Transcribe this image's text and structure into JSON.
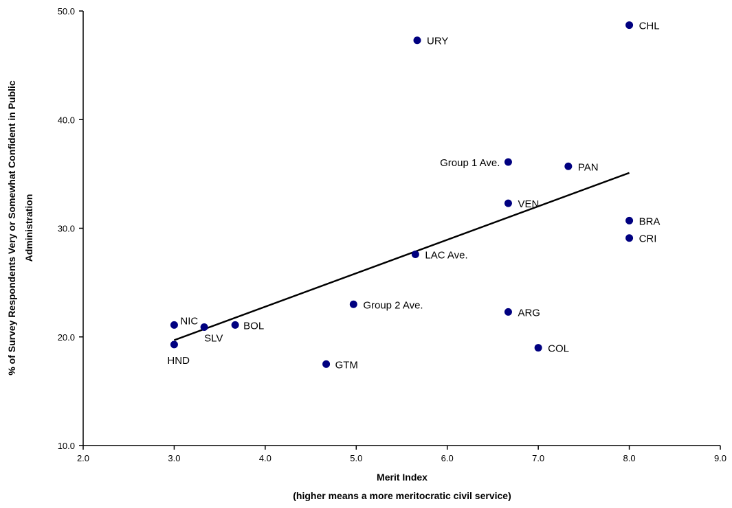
{
  "chart_data": {
    "type": "scatter",
    "title": "",
    "xlabel": "Merit Index",
    "xlabel_line2": "(higher means a more meritocratic civil service)",
    "ylabel": "% of Survey Respondents Very or Somewhat Confident in Public",
    "ylabel_line2": "Administration",
    "xlim": [
      2.0,
      9.0
    ],
    "ylim": [
      10.0,
      50.0
    ],
    "x_ticks": [
      2.0,
      3.0,
      4.0,
      5.0,
      6.0,
      7.0,
      8.0,
      9.0
    ],
    "y_ticks": [
      10.0,
      20.0,
      30.0,
      40.0,
      50.0
    ],
    "x_tick_labels": [
      "2.0",
      "3.0",
      "4.0",
      "5.0",
      "6.0",
      "7.0",
      "8.0",
      "9.0"
    ],
    "y_tick_labels": [
      "10.0",
      "20.0",
      "30.0",
      "40.0",
      "50.0"
    ],
    "grid": false,
    "marker_color": "#000080",
    "points": [
      {
        "label": "CHL",
        "x": 8.0,
        "y": 48.7
      },
      {
        "label": "URY",
        "x": 5.67,
        "y": 47.3
      },
      {
        "label": "Group 1 Ave.",
        "x": 6.67,
        "y": 36.1
      },
      {
        "label": "PAN",
        "x": 7.33,
        "y": 35.7
      },
      {
        "label": "VEN",
        "x": 6.67,
        "y": 32.3
      },
      {
        "label": "BRA",
        "x": 8.0,
        "y": 30.7
      },
      {
        "label": "CRI",
        "x": 8.0,
        "y": 29.1
      },
      {
        "label": "LAC Ave.",
        "x": 5.65,
        "y": 27.6
      },
      {
        "label": "Group 2 Ave.",
        "x": 4.97,
        "y": 23.0
      },
      {
        "label": "ARG",
        "x": 6.67,
        "y": 22.3
      },
      {
        "label": "NIC",
        "x": 3.0,
        "y": 21.1
      },
      {
        "label": "BOL",
        "x": 3.67,
        "y": 21.1
      },
      {
        "label": "SLV",
        "x": 3.33,
        "y": 20.9
      },
      {
        "label": "HND",
        "x": 3.0,
        "y": 19.3
      },
      {
        "label": "COL",
        "x": 7.0,
        "y": 19.0
      },
      {
        "label": "GTM",
        "x": 4.67,
        "y": 17.5
      }
    ],
    "trendline": {
      "x": [
        3.0,
        8.0
      ],
      "y": [
        19.7,
        35.1
      ]
    }
  }
}
